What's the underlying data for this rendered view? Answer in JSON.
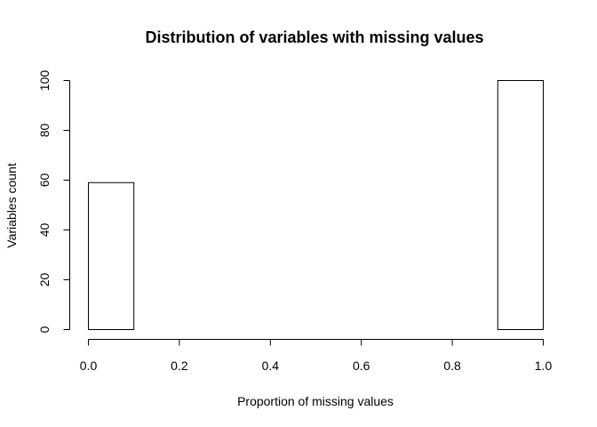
{
  "chart_data": {
    "type": "bar",
    "title": "Distribution of variables with missing values",
    "xlabel": "Proportion of missing values",
    "ylabel": "Variables count",
    "bins": [
      {
        "x0": 0.0,
        "x1": 0.1,
        "value": 59
      },
      {
        "x0": 0.1,
        "x1": 0.2,
        "value": 0
      },
      {
        "x0": 0.2,
        "x1": 0.3,
        "value": 0
      },
      {
        "x0": 0.3,
        "x1": 0.4,
        "value": 0
      },
      {
        "x0": 0.4,
        "x1": 0.5,
        "value": 0
      },
      {
        "x0": 0.5,
        "x1": 0.6,
        "value": 0
      },
      {
        "x0": 0.6,
        "x1": 0.7,
        "value": 0
      },
      {
        "x0": 0.7,
        "x1": 0.8,
        "value": 0
      },
      {
        "x0": 0.8,
        "x1": 0.9,
        "value": 0
      },
      {
        "x0": 0.9,
        "x1": 1.0,
        "value": 100
      }
    ],
    "xlim": [
      0,
      1
    ],
    "ylim": [
      0,
      100
    ],
    "xticks": [
      0.0,
      0.2,
      0.4,
      0.6,
      0.8,
      1.0
    ],
    "xtick_labels": [
      "0.0",
      "0.2",
      "0.4",
      "0.6",
      "0.8",
      "1.0"
    ],
    "yticks": [
      0,
      20,
      40,
      60,
      80,
      100
    ],
    "ytick_labels": [
      "0",
      "20",
      "40",
      "60",
      "80",
      "100"
    ],
    "grid": false,
    "bar_fill": "#ffffff",
    "bar_stroke": "#000000"
  }
}
